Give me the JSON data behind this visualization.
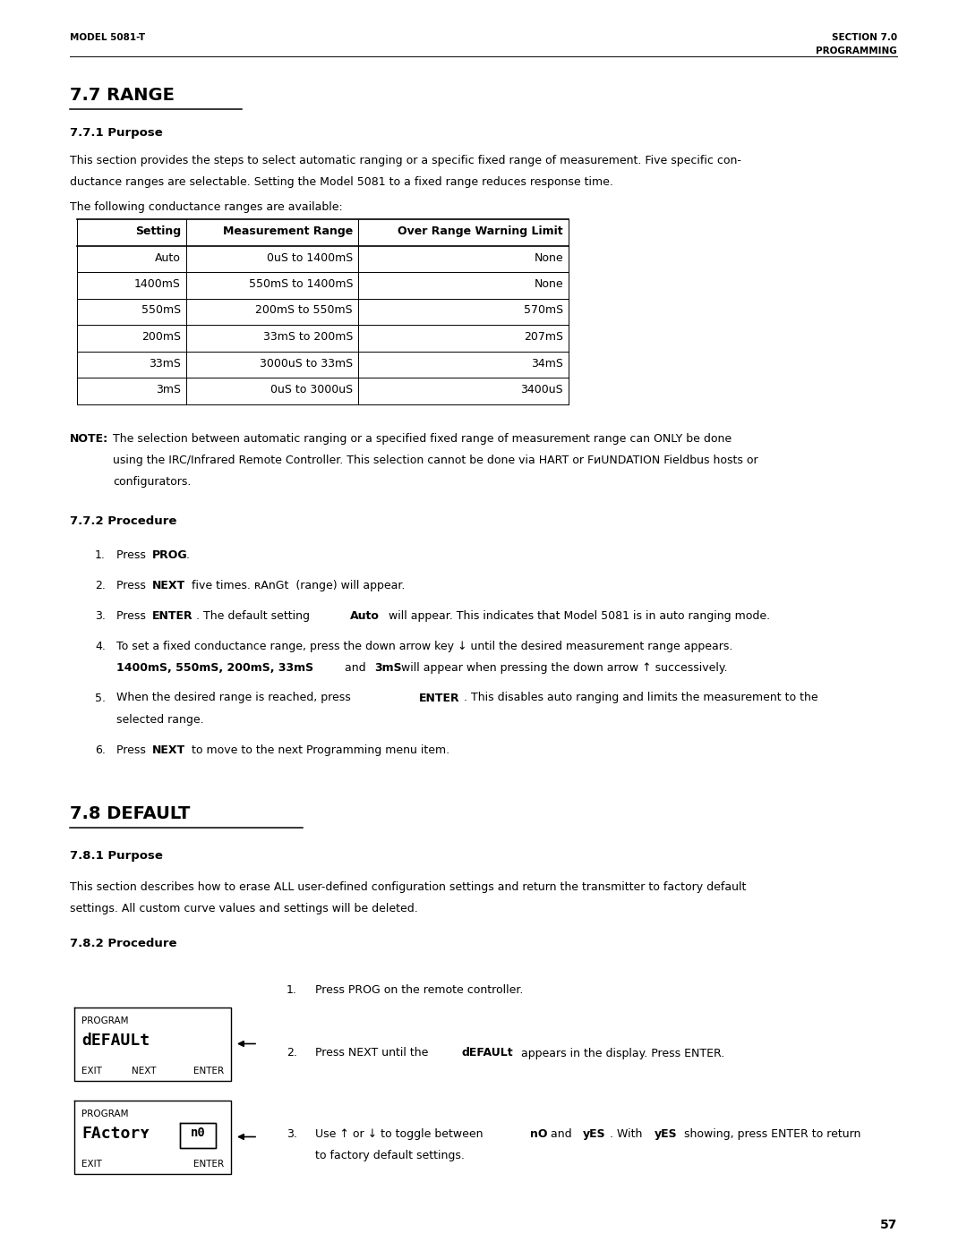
{
  "page_width": 10.8,
  "page_height": 13.97,
  "bg_color": "#ffffff",
  "header_left": "MODEL 5081-T",
  "header_right_line1": "SECTION 7.0",
  "header_right_line2": "PROGRAMMING",
  "section_77_title": "7.7 RANGE",
  "section_771_title": "7.7.1 Purpose",
  "table_headers": [
    "Setting",
    "Measurement Range",
    "Over Range Warning Limit"
  ],
  "table_rows": [
    [
      "Auto",
      "0uS to 1400mS",
      "None"
    ],
    [
      "1400mS",
      "550mS to 1400mS",
      "None"
    ],
    [
      "550mS",
      "200mS to 550mS",
      "570mS"
    ],
    [
      "200mS",
      "33mS to 200mS",
      "207mS"
    ],
    [
      "33mS",
      "3000uS to 33mS",
      "34mS"
    ],
    [
      "3mS",
      "0uS to 3000uS",
      "3400uS"
    ]
  ],
  "section_772_title": "7.7.2 Procedure",
  "section_78_title": "7.8 DEFAULT",
  "section_781_title": "7.8.1 Purpose",
  "section_782_title": "7.8.2 Procedure",
  "page_number": "57",
  "ml": 0.78,
  "mr": 0.78
}
